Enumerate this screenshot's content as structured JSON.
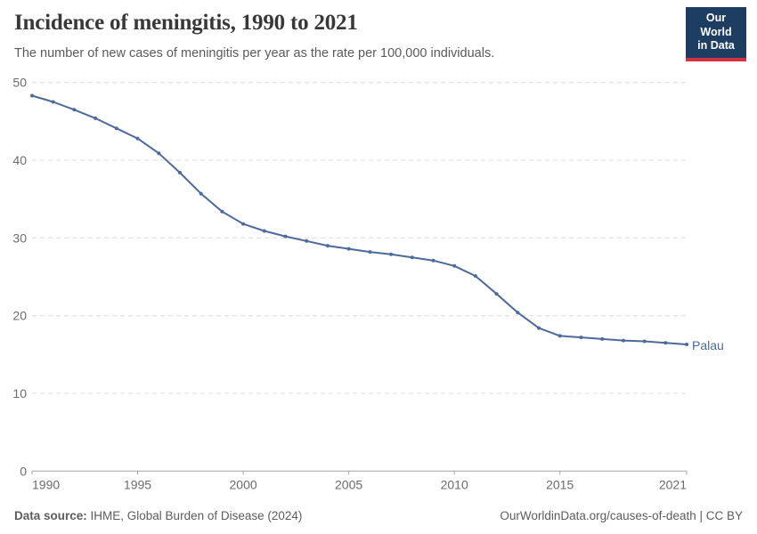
{
  "header": {
    "title": "Incidence of meningitis, 1990 to 2021",
    "subtitle": "The number of new cases of meningitis per year as the rate per 100,000 individuals.",
    "logo": {
      "line1": "Our World",
      "line2": "in Data",
      "bg_color": "#1d3d63",
      "accent_color": "#d0333f"
    }
  },
  "chart_data": {
    "type": "line",
    "title": "Incidence of meningitis, 1990 to 2021",
    "xlabel": "",
    "ylabel": "",
    "x": [
      1990,
      1991,
      1992,
      1993,
      1994,
      1995,
      1996,
      1997,
      1998,
      1999,
      2000,
      2001,
      2002,
      2003,
      2004,
      2005,
      2006,
      2007,
      2008,
      2009,
      2010,
      2011,
      2012,
      2013,
      2014,
      2015,
      2016,
      2017,
      2018,
      2019,
      2020,
      2021
    ],
    "series": [
      {
        "name": "Palau",
        "color": "#4c6a9c",
        "values": [
          48.3,
          47.5,
          46.5,
          45.4,
          44.1,
          42.8,
          40.9,
          38.4,
          35.7,
          33.4,
          31.8,
          30.9,
          30.2,
          29.6,
          29.0,
          28.6,
          28.2,
          27.9,
          27.5,
          27.1,
          26.4,
          25.1,
          22.8,
          20.4,
          18.4,
          17.4,
          17.2,
          17.0,
          16.8,
          16.7,
          16.5,
          16.3
        ]
      }
    ],
    "xlim": [
      1990,
      2021
    ],
    "ylim": [
      0,
      50
    ],
    "x_ticks": [
      1990,
      1995,
      2000,
      2005,
      2010,
      2015,
      2021
    ],
    "y_ticks": [
      0,
      10,
      20,
      30,
      40,
      50
    ],
    "grid": "horizontal-dashed",
    "legend_position": "end-of-line-label",
    "end_label": "Palau"
  },
  "footer": {
    "datasource_label": "Data source:",
    "datasource_value": " IHME, Global Burden of Disease (2024)",
    "credit_link": "OurWorldinData.org/causes-of-death",
    "credit_license": " | CC BY"
  },
  "colors": {
    "line": "#4c6a9c",
    "grid": "#dcdcdc",
    "axis": "#a3a3a3",
    "tick_label": "#6b6b6b",
    "title": "#383838",
    "subtitle": "#5a5a5a",
    "footer": "#5c5c5c"
  }
}
